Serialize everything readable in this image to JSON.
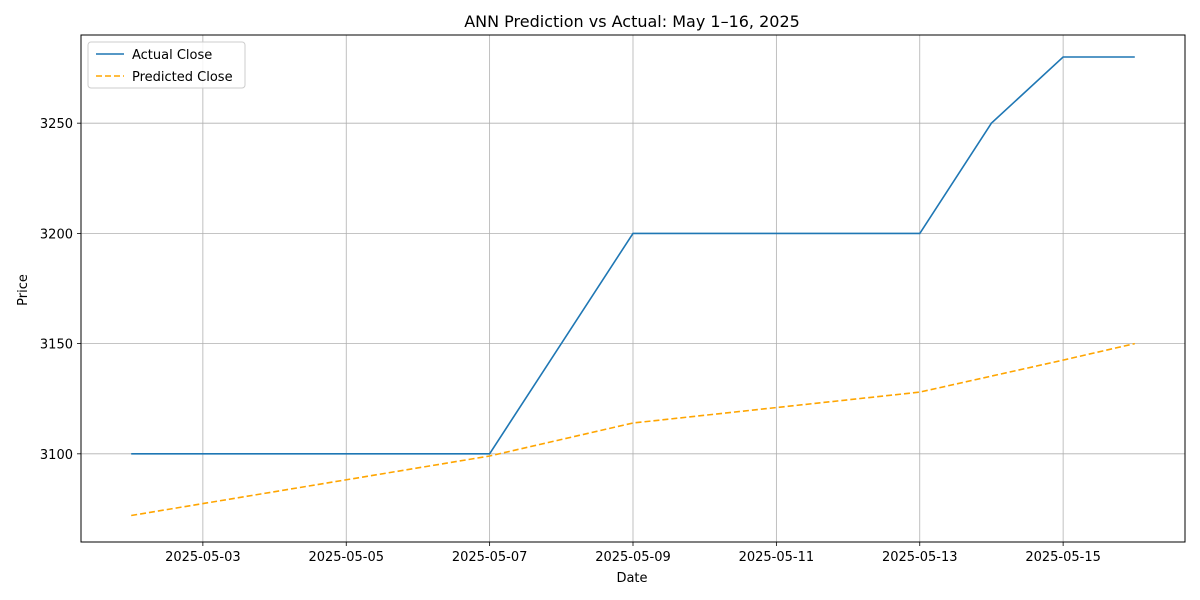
{
  "chart_data": {
    "type": "line",
    "title": "ANN Prediction vs Actual: May 1–16, 2025",
    "xlabel": "Date",
    "ylabel": "Price",
    "grid": true,
    "legend_position": "top-left",
    "x_tick_labels": [
      "2025-05-03",
      "2025-05-05",
      "2025-05-07",
      "2025-05-09",
      "2025-05-11",
      "2025-05-13",
      "2025-05-15"
    ],
    "y_ticks": [
      3100,
      3150,
      3200,
      3250
    ],
    "xlim": [
      "2025-05-01",
      "2025-05-16"
    ],
    "ylim": [
      3060,
      3290
    ],
    "series": [
      {
        "name": "Actual Close",
        "color": "#1f77b4",
        "style": "solid",
        "points": [
          {
            "x": "2025-05-02",
            "y": 3100
          },
          {
            "x": "2025-05-07",
            "y": 3100
          },
          {
            "x": "2025-05-09",
            "y": 3200
          },
          {
            "x": "2025-05-13",
            "y": 3200
          },
          {
            "x": "2025-05-14",
            "y": 3250
          },
          {
            "x": "2025-05-15",
            "y": 3280
          },
          {
            "x": "2025-05-16",
            "y": 3280
          }
        ]
      },
      {
        "name": "Predicted Close",
        "color": "#ffa500",
        "style": "dashed",
        "points": [
          {
            "x": "2025-05-02",
            "y": 3072
          },
          {
            "x": "2025-05-07",
            "y": 3099
          },
          {
            "x": "2025-05-09",
            "y": 3114
          },
          {
            "x": "2025-05-13",
            "y": 3128
          },
          {
            "x": "2025-05-15",
            "y": 3142.5
          },
          {
            "x": "2025-05-16",
            "y": 3150
          }
        ]
      }
    ]
  }
}
